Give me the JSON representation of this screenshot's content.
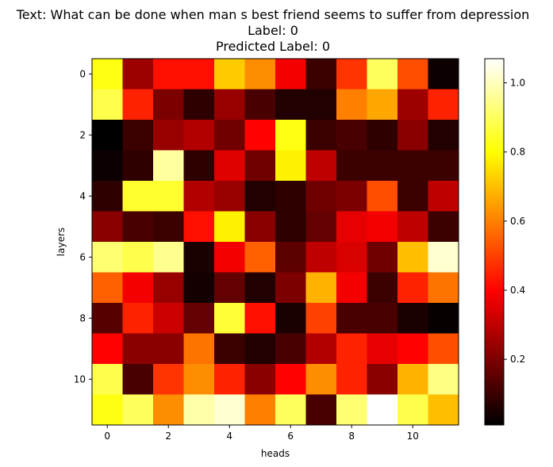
{
  "chart_data": {
    "type": "heatmap",
    "title_lines": [
      "Text: What can be done when man s best friend seems to suffer from depression",
      "Label: 0",
      "Predicted Label: 0"
    ],
    "xlabel": "heads",
    "ylabel": "layers",
    "colormap": "hot",
    "x_ticks": [
      0,
      2,
      4,
      6,
      8,
      10
    ],
    "y_ticks": [
      0,
      2,
      4,
      6,
      8,
      10
    ],
    "colorbar": {
      "min": 0.01,
      "max": 1.07,
      "ticks": [
        0.2,
        0.4,
        0.6,
        0.8,
        1.0
      ]
    },
    "values": [
      [
        0.82,
        0.25,
        0.42,
        0.42,
        0.72,
        0.62,
        0.38,
        0.1,
        0.48,
        0.9,
        0.52,
        0.03
      ],
      [
        0.88,
        0.45,
        0.2,
        0.08,
        0.24,
        0.12,
        0.06,
        0.06,
        0.6,
        0.66,
        0.25,
        0.45
      ],
      [
        0.01,
        0.1,
        0.24,
        0.28,
        0.18,
        0.4,
        0.82,
        0.1,
        0.12,
        0.08,
        0.22,
        0.06
      ],
      [
        0.03,
        0.08,
        0.97,
        0.08,
        0.35,
        0.18,
        0.78,
        0.3,
        0.1,
        0.1,
        0.1,
        0.1
      ],
      [
        0.08,
        0.85,
        0.85,
        0.28,
        0.24,
        0.06,
        0.08,
        0.18,
        0.2,
        0.52,
        0.1,
        0.3
      ],
      [
        0.22,
        0.12,
        0.1,
        0.42,
        0.78,
        0.22,
        0.08,
        0.16,
        0.36,
        0.38,
        0.3,
        0.1
      ],
      [
        0.92,
        0.88,
        0.95,
        0.05,
        0.38,
        0.55,
        0.15,
        0.3,
        0.34,
        0.18,
        0.7,
        1.02
      ],
      [
        0.55,
        0.38,
        0.24,
        0.04,
        0.16,
        0.06,
        0.2,
        0.68,
        0.38,
        0.1,
        0.45,
        0.58
      ],
      [
        0.14,
        0.45,
        0.32,
        0.16,
        0.86,
        0.42,
        0.05,
        0.5,
        0.12,
        0.12,
        0.05,
        0.02
      ],
      [
        0.4,
        0.22,
        0.22,
        0.58,
        0.1,
        0.06,
        0.12,
        0.28,
        0.45,
        0.36,
        0.4,
        0.52
      ],
      [
        0.88,
        0.12,
        0.48,
        0.62,
        0.45,
        0.22,
        0.4,
        0.62,
        0.45,
        0.22,
        0.68,
        0.94
      ],
      [
        0.82,
        0.9,
        0.62,
        0.98,
        1.02,
        0.6,
        0.9,
        0.12,
        0.92,
        1.07,
        0.88,
        0.7
      ]
    ]
  }
}
